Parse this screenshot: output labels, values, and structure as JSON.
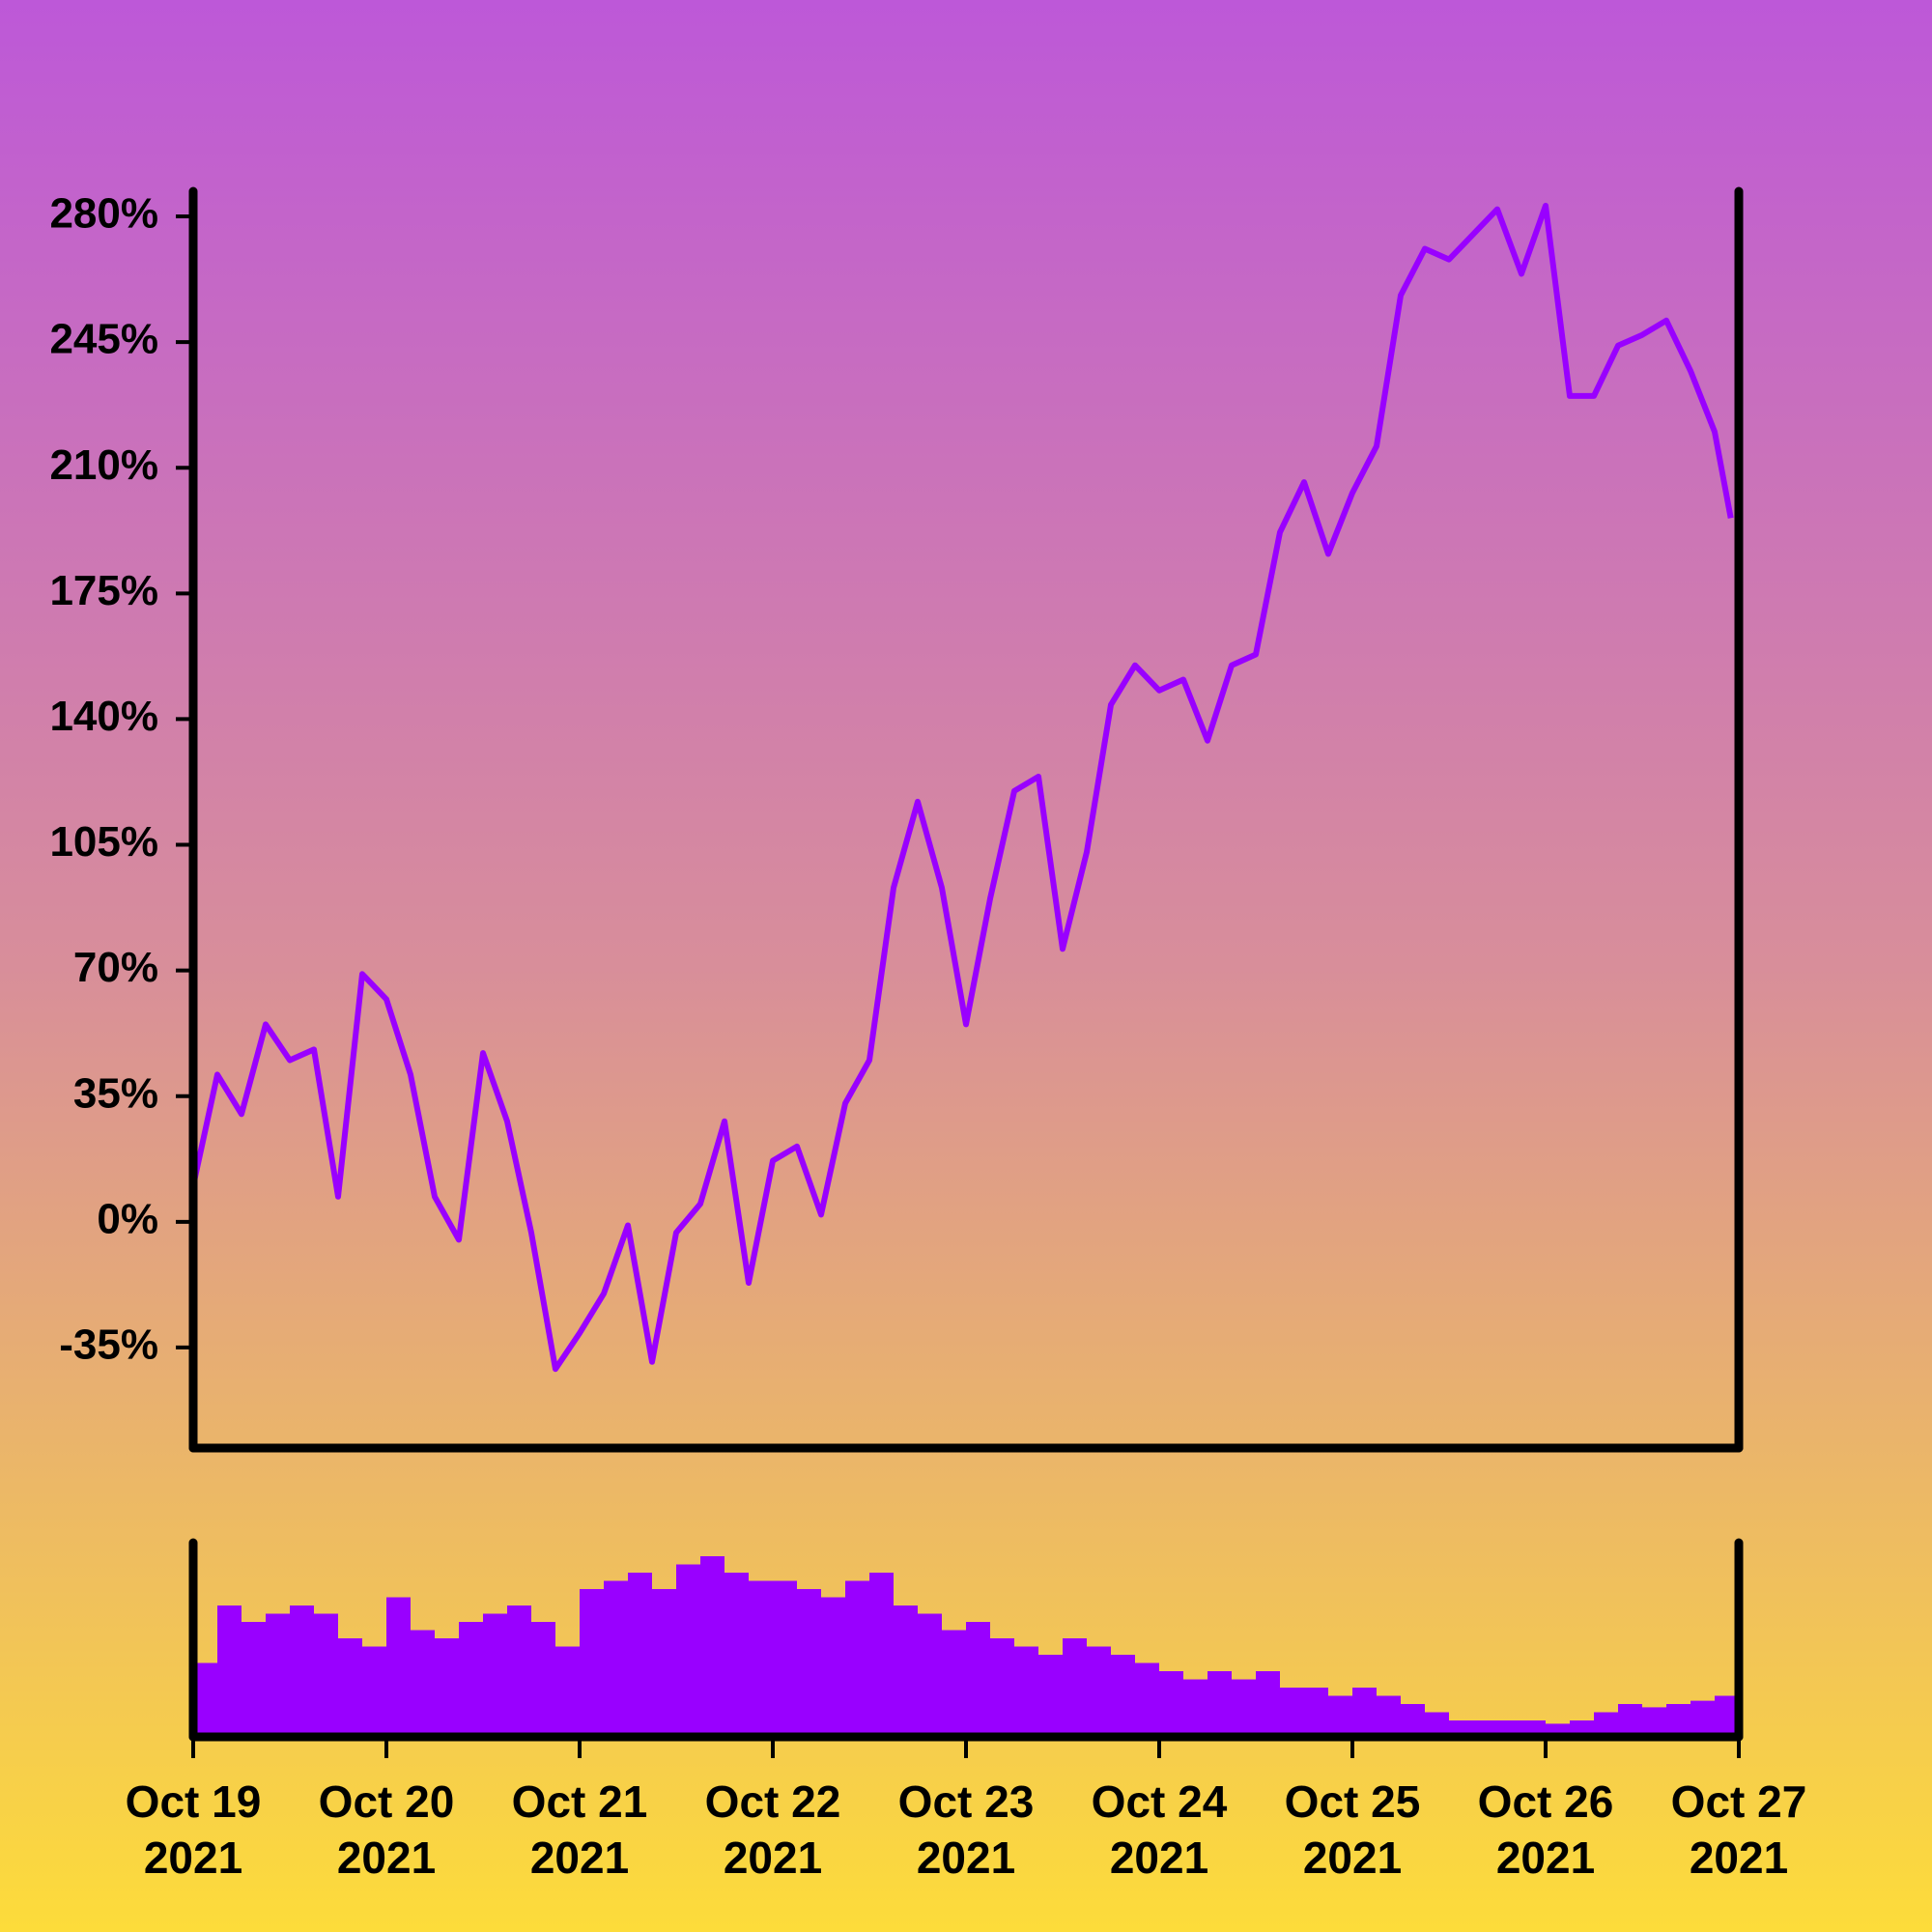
{
  "chart_data": {
    "type": "line",
    "color": "#9900ff",
    "x": [
      "2021-10-19T00:00Z",
      "2021-10-19T03:00Z",
      "2021-10-19T06:00Z",
      "2021-10-19T09:00Z",
      "2021-10-19T12:00Z",
      "2021-10-19T15:00Z",
      "2021-10-19T18:00Z",
      "2021-10-19T21:00Z",
      "2021-10-20T00:00Z",
      "2021-10-20T03:00Z",
      "2021-10-20T06:00Z",
      "2021-10-20T09:00Z",
      "2021-10-20T12:00Z",
      "2021-10-20T15:00Z",
      "2021-10-20T18:00Z",
      "2021-10-20T21:00Z",
      "2021-10-21T00:00Z",
      "2021-10-21T03:00Z",
      "2021-10-21T06:00Z",
      "2021-10-21T09:00Z",
      "2021-10-21T12:00Z",
      "2021-10-21T15:00Z",
      "2021-10-21T18:00Z",
      "2021-10-21T21:00Z",
      "2021-10-22T00:00Z",
      "2021-10-22T03:00Z",
      "2021-10-22T06:00Z",
      "2021-10-22T09:00Z",
      "2021-10-22T12:00Z",
      "2021-10-22T15:00Z",
      "2021-10-22T18:00Z",
      "2021-10-22T21:00Z",
      "2021-10-23T00:00Z",
      "2021-10-23T03:00Z",
      "2021-10-23T06:00Z",
      "2021-10-23T09:00Z",
      "2021-10-23T12:00Z",
      "2021-10-23T15:00Z",
      "2021-10-23T18:00Z",
      "2021-10-23T21:00Z",
      "2021-10-24T00:00Z",
      "2021-10-24T03:00Z",
      "2021-10-24T06:00Z",
      "2021-10-24T09:00Z",
      "2021-10-24T12:00Z",
      "2021-10-24T15:00Z",
      "2021-10-24T18:00Z",
      "2021-10-24T21:00Z",
      "2021-10-25T00:00Z",
      "2021-10-25T03:00Z",
      "2021-10-25T06:00Z",
      "2021-10-25T09:00Z",
      "2021-10-25T12:00Z",
      "2021-10-25T15:00Z",
      "2021-10-25T18:00Z",
      "2021-10-25T21:00Z",
      "2021-10-26T00:00Z",
      "2021-10-26T03:00Z",
      "2021-10-26T06:00Z",
      "2021-10-26T09:00Z",
      "2021-10-26T12:00Z",
      "2021-10-26T15:00Z",
      "2021-10-26T18:00Z",
      "2021-10-26T21:00Z",
      "2021-10-26T23:00Z"
    ],
    "values": [
      10,
      41,
      30,
      55,
      45,
      48,
      7,
      69,
      62,
      41,
      7,
      -5,
      47,
      28,
      -3,
      -41,
      -31,
      -20,
      -1,
      -39,
      -3,
      5,
      28,
      -17,
      17,
      21,
      2,
      33,
      45,
      93,
      117,
      93,
      55,
      90,
      120,
      124,
      76,
      103,
      144,
      155,
      148,
      151,
      134,
      155,
      158,
      192,
      206,
      186,
      203,
      216,
      258,
      271,
      268,
      275,
      282,
      264,
      283,
      230,
      230,
      244,
      247,
      251,
      237,
      220,
      196
    ],
    "volume": {
      "type": "bar",
      "color": "#9900ff",
      "values": [
        45,
        80,
        70,
        75,
        80,
        75,
        60,
        55,
        85,
        65,
        60,
        70,
        75,
        80,
        70,
        55,
        90,
        95,
        100,
        90,
        105,
        110,
        100,
        95,
        95,
        90,
        85,
        95,
        100,
        80,
        75,
        65,
        70,
        60,
        55,
        50,
        60,
        55,
        50,
        45,
        40,
        35,
        40,
        35,
        40,
        30,
        30,
        25,
        30,
        25,
        20,
        15,
        10,
        10,
        10,
        10,
        8,
        10,
        15,
        20,
        18,
        20,
        22,
        25,
        25
      ]
    },
    "xlim": [
      "2021-10-19T00:00Z",
      "2021-10-27T00:00Z"
    ],
    "xticks": [
      {
        "value": "2021-10-19T00:00Z",
        "label": "Oct 19 2021"
      },
      {
        "value": "2021-10-20T00:00Z",
        "label": "Oct 20 2021"
      },
      {
        "value": "2021-10-21T00:00Z",
        "label": "Oct 21 2021"
      },
      {
        "value": "2021-10-22T00:00Z",
        "label": "Oct 22 2021"
      },
      {
        "value": "2021-10-23T00:00Z",
        "label": "Oct 23 2021"
      },
      {
        "value": "2021-10-24T00:00Z",
        "label": "Oct 24 2021"
      },
      {
        "value": "2021-10-25T00:00Z",
        "label": "Oct 25 2021"
      },
      {
        "value": "2021-10-26T00:00Z",
        "label": "Oct 26 2021"
      },
      {
        "value": "2021-10-27T00:00Z",
        "label": "Oct 27 2021"
      }
    ],
    "ylim": [
      -63,
      287
    ],
    "yticks": [
      {
        "value": -35,
        "label": "-35%"
      },
      {
        "value": 0,
        "label": "0%"
      },
      {
        "value": 35,
        "label": "35%"
      },
      {
        "value": 70,
        "label": "70%"
      },
      {
        "value": 105,
        "label": "105%"
      },
      {
        "value": 140,
        "label": "140%"
      },
      {
        "value": 175,
        "label": "175%"
      },
      {
        "value": 210,
        "label": "210%"
      },
      {
        "value": 245,
        "label": "245%"
      },
      {
        "value": 280,
        "label": "280%"
      }
    ]
  }
}
